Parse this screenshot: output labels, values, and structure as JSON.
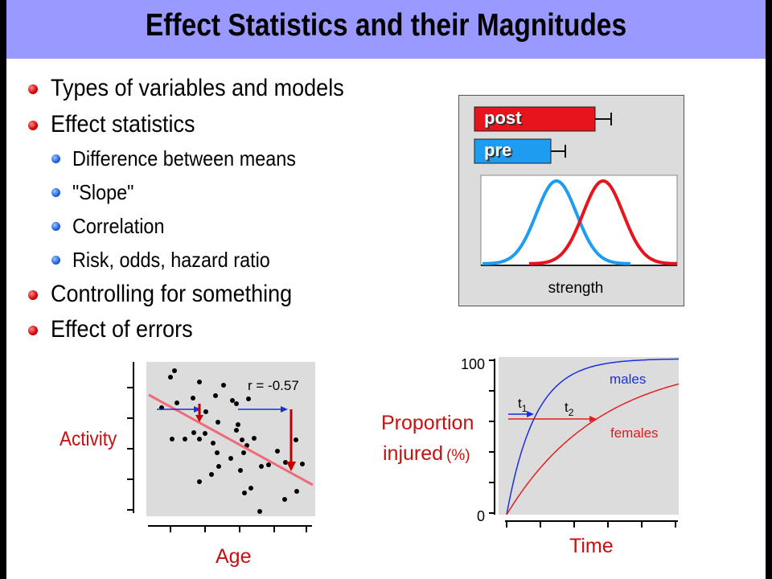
{
  "title": "Effect Statistics and their Magnitudes",
  "bullets": {
    "l1_a": "Types of variables and models",
    "l1_b": "Effect statistics",
    "l2_a": "Difference between means",
    "l2_b": "\"Slope\"",
    "l2_c": "Correlation",
    "l2_d": "Risk, odds, hazard ratio",
    "l1_c": "Controlling for something",
    "l1_d": "Effect of errors"
  },
  "means_figure": {
    "post_label": "post",
    "pre_label": "pre",
    "axis_label": "strength",
    "colors": {
      "post": "#e8141b",
      "pre": "#1e9cf0",
      "panel": "#dcdcdc"
    }
  },
  "scatter_figure": {
    "ylabel": "Activity",
    "xlabel": "Age",
    "annotation": "r = -0.57",
    "colors": {
      "fit_line": "#f06b7a",
      "arrow_h": "#1a2fd6",
      "arrow_v": "#c00000"
    }
  },
  "survival_figure": {
    "ylabel_line1": "Proportion",
    "ylabel_line2": "injured",
    "ylabel_unit": "(%)",
    "xlabel": "Time",
    "y_top": "100",
    "y_bottom": "0",
    "series_males": "males",
    "series_females": "females",
    "t1": "t",
    "t1_sub": "1",
    "t2": "t",
    "t2_sub": "2",
    "colors": {
      "males": "#1a2fe0",
      "females": "#e02020",
      "label_red": "#d42020"
    }
  }
}
